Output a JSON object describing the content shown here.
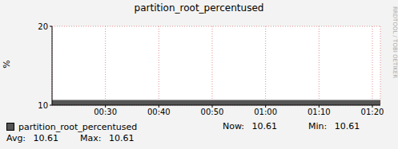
{
  "chart_data": {
    "type": "area",
    "title": "partition_root_percentused",
    "y_label": "%",
    "watermark": "RRDTOOL / TOBI OETIKER",
    "x": [
      20,
      30,
      40,
      50,
      60,
      70,
      80,
      81.5
    ],
    "series": [
      {
        "name": "partition_root_percentused",
        "color": "#555555",
        "values": [
          10.61,
          10.61,
          10.61,
          10.61,
          10.61,
          10.61,
          10.61,
          10.61
        ]
      }
    ],
    "xlim": [
      20,
      81.5
    ],
    "xticks": [
      {
        "value": 30,
        "label": "00:30"
      },
      {
        "value": 40,
        "label": "00:40"
      },
      {
        "value": 50,
        "label": "00:50"
      },
      {
        "value": 60,
        "label": "01:00"
      },
      {
        "value": 70,
        "label": "01:10"
      },
      {
        "value": 80,
        "label": "01:20"
      }
    ],
    "ylim": [
      10,
      20
    ],
    "yticks": [
      10,
      20
    ],
    "grid": true,
    "stats": [
      {
        "label": "Now:",
        "value": 10.61
      },
      {
        "label": "Min:",
        "value": 10.61
      },
      {
        "label": "Avg:",
        "value": 10.61
      },
      {
        "label": "Max:",
        "value": 10.61
      }
    ]
  }
}
